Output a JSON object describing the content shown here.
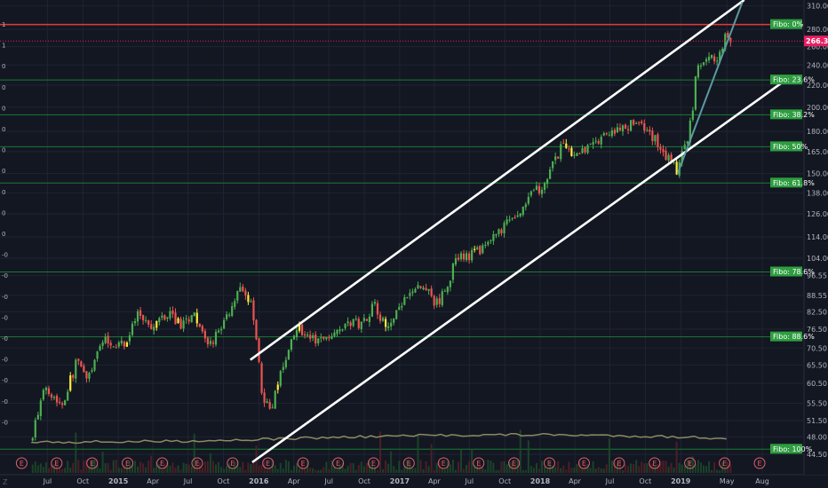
{
  "chart_data": {
    "type": "candlestick",
    "title": "",
    "y_scale": "log",
    "ylim": [
      43,
      318
    ],
    "x_axis_labels": [
      "Jul",
      "Oct",
      "2015",
      "Apr",
      "Jul",
      "Oct",
      "2016",
      "Apr",
      "Jul",
      "Oct",
      "2017",
      "Apr",
      "Jul",
      "Oct",
      "2018",
      "Apr",
      "Jul",
      "Oct",
      "2019",
      "May",
      "Aug"
    ],
    "y_axis_ticks": [
      310.0,
      280.0,
      260.0,
      240.0,
      220.0,
      200.0,
      180.0,
      165.0,
      150.0,
      138.0,
      126.0,
      114.0,
      104.0,
      96.55,
      88.55,
      82.5,
      76.5,
      70.5,
      65.5,
      60.5,
      55.5,
      51.5,
      48.0,
      44.5
    ],
    "y_axis_tick_labels": [
      "310.00",
      "280.00",
      "260.00",
      "240.00",
      "220.00",
      "200.00",
      "180.00",
      "165.00",
      "150.00",
      "138.00",
      "126.00",
      "114.00",
      "104.00",
      "96.55",
      "88.55",
      "82.50",
      "76.50",
      "70.50",
      "65.50",
      "60.50",
      "55.50",
      "51.50",
      "48.00",
      "44.50"
    ],
    "last_price": 266.3,
    "last_price_label": "266.30",
    "price_path": [
      {
        "date": "2014-05-20",
        "price": 47
      },
      {
        "date": "2014-07-01",
        "price": 60
      },
      {
        "date": "2014-08-10",
        "price": 55
      },
      {
        "date": "2014-09-20",
        "price": 67
      },
      {
        "date": "2014-10-15",
        "price": 61
      },
      {
        "date": "2014-12-01",
        "price": 74
      },
      {
        "date": "2015-01-15",
        "price": 71
      },
      {
        "date": "2015-03-01",
        "price": 82
      },
      {
        "date": "2015-04-01",
        "price": 77
      },
      {
        "date": "2015-05-15",
        "price": 82
      },
      {
        "date": "2015-06-15",
        "price": 78
      },
      {
        "date": "2015-07-20",
        "price": 82
      },
      {
        "date": "2015-08-25",
        "price": 70
      },
      {
        "date": "2015-10-01",
        "price": 78
      },
      {
        "date": "2015-11-15",
        "price": 90
      },
      {
        "date": "2015-12-20",
        "price": 84
      },
      {
        "date": "2016-01-15",
        "price": 56
      },
      {
        "date": "2016-02-10",
        "price": 55
      },
      {
        "date": "2016-03-10",
        "price": 67
      },
      {
        "date": "2016-04-20",
        "price": 77
      },
      {
        "date": "2016-06-01",
        "price": 72
      },
      {
        "date": "2016-08-01",
        "price": 78
      },
      {
        "date": "2016-10-01",
        "price": 79
      },
      {
        "date": "2016-11-01",
        "price": 86
      },
      {
        "date": "2016-12-01",
        "price": 76
      },
      {
        "date": "2017-01-15",
        "price": 86
      },
      {
        "date": "2017-03-01",
        "price": 92
      },
      {
        "date": "2017-04-15",
        "price": 85
      },
      {
        "date": "2017-06-01",
        "price": 103
      },
      {
        "date": "2017-08-01",
        "price": 107
      },
      {
        "date": "2017-09-15",
        "price": 115
      },
      {
        "date": "2017-11-01",
        "price": 125
      },
      {
        "date": "2018-01-15",
        "price": 145
      },
      {
        "date": "2018-03-01",
        "price": 168
      },
      {
        "date": "2018-04-15",
        "price": 162
      },
      {
        "date": "2018-06-01",
        "price": 172
      },
      {
        "date": "2018-08-01",
        "price": 183
      },
      {
        "date": "2018-09-15",
        "price": 188
      },
      {
        "date": "2018-11-10",
        "price": 170
      },
      {
        "date": "2018-12-24",
        "price": 152
      },
      {
        "date": "2019-01-15",
        "price": 168
      },
      {
        "date": "2019-02-01",
        "price": 190
      },
      {
        "date": "2019-02-15",
        "price": 235
      },
      {
        "date": "2019-03-15",
        "price": 245
      },
      {
        "date": "2019-04-10",
        "price": 248
      },
      {
        "date": "2019-04-20",
        "price": 260
      },
      {
        "date": "2019-05-01",
        "price": 272
      },
      {
        "date": "2019-05-08",
        "price": 266.3
      }
    ],
    "fibonacci": [
      {
        "label": "Fibo:   0%",
        "price": 286
      },
      {
        "label": "Fibo: 23.6%",
        "price": 225
      },
      {
        "label": "Fibo: 38.2%",
        "price": 193.5
      },
      {
        "label": "Fibo:  50%",
        "price": 168.5
      },
      {
        "label": "Fibo: 61.8%",
        "price": 144
      },
      {
        "label": "Fibo: 78.6%",
        "price": 98
      },
      {
        "label": "Fibo: 88.6%",
        "price": 74
      },
      {
        "label": "Fibo: 100%",
        "price": 45.5
      }
    ],
    "horizontal_line_price": 286,
    "channel_upper": [
      {
        "date": "2015-12-10",
        "price": 67
      },
      {
        "date": "2019-06-15",
        "price": 318
      }
    ],
    "channel_lower": [
      {
        "date": "2015-12-15",
        "price": 43
      },
      {
        "date": "2019-10-01",
        "price": 225
      }
    ],
    "trend_line": [
      {
        "date": "2018-12-24",
        "price": 150
      },
      {
        "date": "2019-06-10",
        "price": 315
      }
    ],
    "earnings_marker_label": "E",
    "earnings_dates": [
      "2014-04-25",
      "2014-07-25",
      "2014-10-25",
      "2015-01-25",
      "2015-04-25",
      "2015-07-25",
      "2015-10-25",
      "2016-01-25",
      "2016-04-25",
      "2016-07-25",
      "2016-10-25",
      "2017-01-25",
      "2017-04-25",
      "2017-07-25",
      "2017-10-25",
      "2018-01-25",
      "2018-04-25",
      "2018-07-25",
      "2018-10-25",
      "2019-01-25",
      "2019-04-25",
      "2019-07-25"
    ],
    "left_edge_labels": [
      "1",
      "1",
      "0",
      "0",
      "0",
      "0",
      "0",
      "0",
      "0",
      "0",
      "0",
      "-0",
      "-0",
      "-0",
      "-0",
      "-0",
      "-0",
      "-0",
      "-0",
      "-0"
    ],
    "colors": {
      "background": "#131722",
      "up": "#4caf50",
      "down": "#ef5350",
      "doji": "#ffeb3b",
      "fib_line": "#1b7a34",
      "fib_label_bg": "#2e9e40",
      "red_line": "#e53935",
      "last_price_line": "#e91e63",
      "channel": "#ffffff",
      "trend": "#5b9aa0",
      "volume_ma": "#8d8a62",
      "earnings": "#e0606a"
    }
  },
  "watermark_glyph": "Z"
}
